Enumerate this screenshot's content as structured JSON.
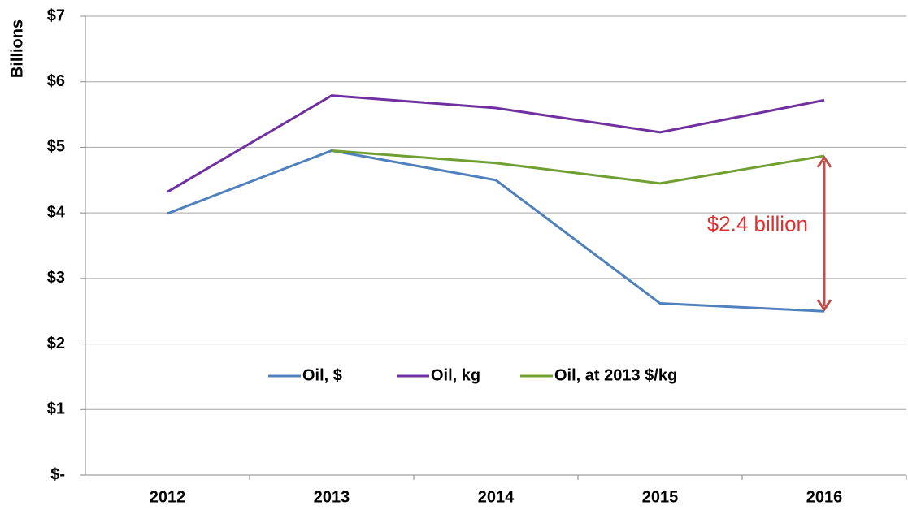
{
  "chart_data": {
    "type": "line",
    "y_axis_label": "Billions",
    "annotation": "$2.4 billion",
    "categories": [
      "2012",
      "2013",
      "2014",
      "2015",
      "2016"
    ],
    "series": [
      {
        "name": "Oil, $",
        "color": "#4f81bd",
        "values": [
          3.99,
          4.95,
          4.5,
          2.62,
          2.5
        ]
      },
      {
        "name": "Oil, kg",
        "color": "#7030a0",
        "values": [
          4.32,
          5.79,
          5.6,
          5.23,
          5.72
        ]
      },
      {
        "name": "Oil, at 2013 $/kg",
        "color": "#70a032",
        "values": [
          null,
          4.95,
          4.76,
          4.45,
          4.87
        ]
      }
    ],
    "ylim": [
      0,
      7
    ],
    "yticks": [
      {
        "value": 0,
        "label": "$-"
      },
      {
        "value": 1,
        "label": "$1"
      },
      {
        "value": 2,
        "label": "$2"
      },
      {
        "value": 3,
        "label": "$3"
      },
      {
        "value": 4,
        "label": "$4"
      },
      {
        "value": 5,
        "label": "$5"
      },
      {
        "value": 6,
        "label": "$6"
      },
      {
        "value": 7,
        "label": "$7"
      }
    ],
    "grid": true,
    "legend": "center"
  }
}
